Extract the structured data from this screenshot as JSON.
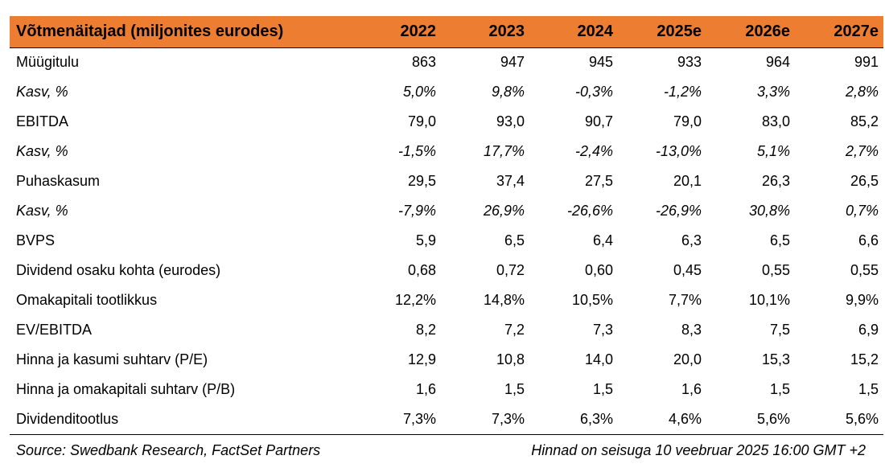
{
  "table": {
    "header": [
      "Võtmenäitajad (miljonites eurodes)",
      "2022",
      "2023",
      "2024",
      "2025e",
      "2026e",
      "2027e"
    ],
    "rows": [
      {
        "italic": false,
        "cells": [
          "Müügitulu",
          "863",
          "947",
          "945",
          "933",
          "964",
          "991"
        ]
      },
      {
        "italic": true,
        "cells": [
          "Kasv, %",
          "5,0%",
          "9,8%",
          "-0,3%",
          "-1,2%",
          "3,3%",
          "2,8%"
        ]
      },
      {
        "italic": false,
        "cells": [
          "EBITDA",
          "79,0",
          "93,0",
          "90,7",
          "79,0",
          "83,0",
          "85,2"
        ]
      },
      {
        "italic": true,
        "cells": [
          "Kasv, %",
          "-1,5%",
          "17,7%",
          "-2,4%",
          "-13,0%",
          "5,1%",
          "2,7%"
        ]
      },
      {
        "italic": false,
        "cells": [
          "Puhaskasum",
          "29,5",
          "37,4",
          "27,5",
          "20,1",
          "26,3",
          "26,5"
        ]
      },
      {
        "italic": true,
        "cells": [
          "Kasv, %",
          "-7,9%",
          "26,9%",
          "-26,6%",
          "-26,9%",
          "30,8%",
          "0,7%"
        ]
      },
      {
        "italic": false,
        "cells": [
          "BVPS",
          "5,9",
          "6,5",
          "6,4",
          "6,3",
          "6,5",
          "6,6"
        ]
      },
      {
        "italic": false,
        "cells": [
          "Dividend osaku kohta (eurodes)",
          "0,68",
          "0,72",
          "0,60",
          "0,45",
          "0,55",
          "0,55"
        ]
      },
      {
        "italic": false,
        "cells": [
          "Omakapitali tootlikkus",
          "12,2%",
          "14,8%",
          "10,5%",
          "7,7%",
          "10,1%",
          "9,9%"
        ]
      },
      {
        "italic": false,
        "cells": [
          "EV/EBITDA",
          "8,2",
          "7,2",
          "7,3",
          "8,3",
          "7,5",
          "6,9"
        ]
      },
      {
        "italic": false,
        "cells": [
          "Hinna ja kasumi suhtarv (P/E)",
          "12,9",
          "10,8",
          "14,0",
          "20,0",
          "15,3",
          "15,2"
        ]
      },
      {
        "italic": false,
        "cells": [
          "Hinna ja omakapitali suhtarv (P/B)",
          "1,6",
          "1,5",
          "1,5",
          "1,6",
          "1,5",
          "1,5"
        ]
      },
      {
        "italic": false,
        "cells": [
          "Dividenditootlus",
          "7,3%",
          "7,3%",
          "6,3%",
          "4,6%",
          "5,6%",
          "5,6%"
        ]
      }
    ]
  },
  "footer": {
    "source": "Source: Swedbank Research, FactSet Partners",
    "note": "Hinnad on seisuga 10 veebruar 2025 16:00 GMT +2"
  },
  "colors": {
    "header_bg": "#ED7D31"
  }
}
